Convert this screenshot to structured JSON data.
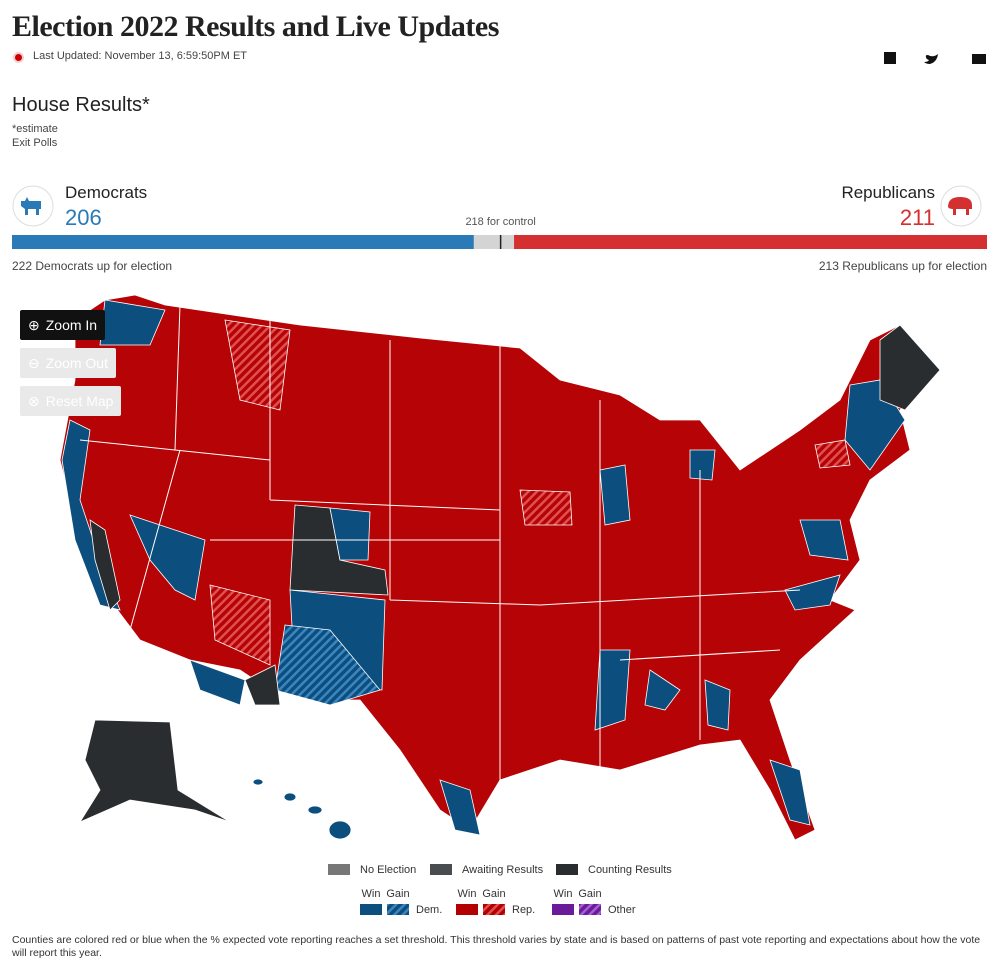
{
  "header": {
    "title": "Election 2022 Results and Live Updates",
    "last_updated": "Last Updated: November 13, 6:59:50PM ET"
  },
  "house": {
    "title": "House Results*",
    "note": "*estimate",
    "source": "Exit Polls",
    "dem": {
      "name": "Democrats",
      "seats": 206,
      "up_count": 222,
      "up_label": "Democrats up for election"
    },
    "rep": {
      "name": "Republicans",
      "seats": 211,
      "up_count": 213,
      "up_label": "Republicans up for election"
    },
    "control": {
      "seats": 218,
      "label": "for control"
    }
  },
  "map_controls": {
    "zoom_in": "Zoom In",
    "zoom_out": "Zoom Out",
    "reset": "Reset Map"
  },
  "legend": {
    "status": [
      "No Election",
      "Awaiting Results",
      "Counting Results"
    ],
    "parties": [
      {
        "win": "Win",
        "gain": "Gain",
        "name": "Dem."
      },
      {
        "win": "Win",
        "gain": "Gain",
        "name": "Rep."
      },
      {
        "win": "Win",
        "gain": "Gain",
        "name": "Other"
      }
    ]
  },
  "footnote": "Counties are colored red or blue when the % expected vote reporting reaches a set threshold. This threshold varies by state and is based on patterns of past vote reporting and expectations about how the vote will report this year."
}
